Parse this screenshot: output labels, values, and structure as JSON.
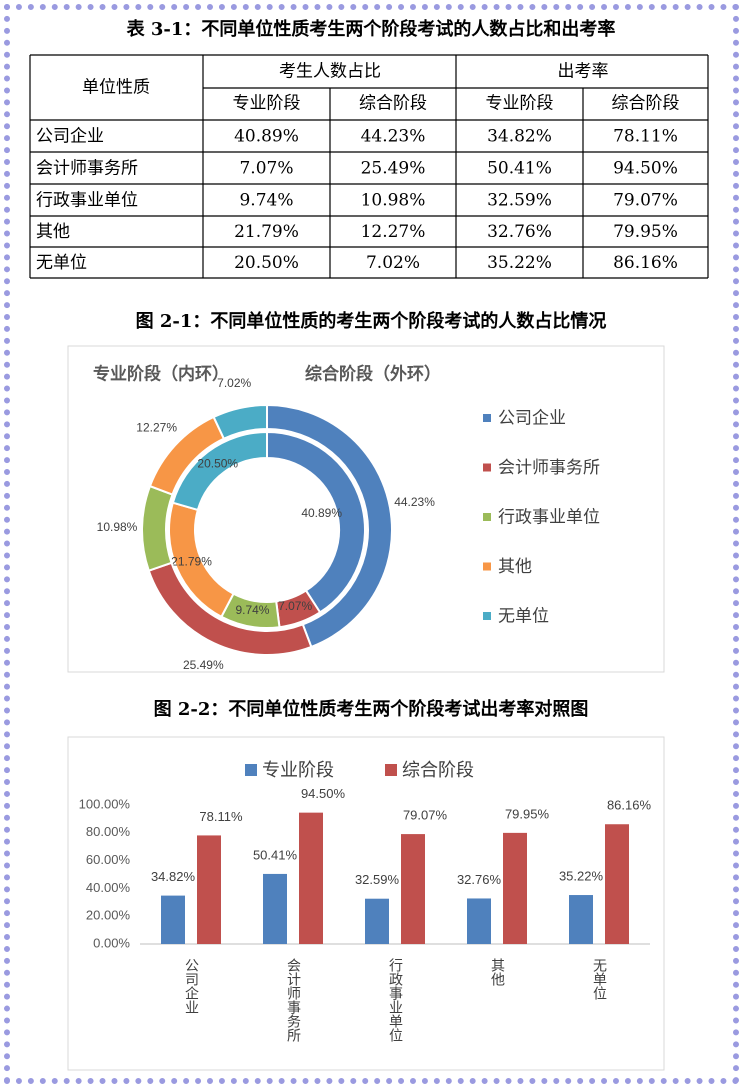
{
  "table": {
    "title": "表 3-1：不同单位性质考生两个阶段考试的人数占比和出考率",
    "header_row1": [
      "单位性质",
      "考生人数占比",
      "出考率"
    ],
    "header_row2": [
      "专业阶段",
      "综合阶段",
      "专业阶段",
      "综合阶段"
    ],
    "rows": [
      [
        "公司企业",
        "40.89%",
        "44.23%",
        "34.82%",
        "78.11%"
      ],
      [
        "会计师事务所",
        "7.07%",
        "25.49%",
        "50.41%",
        "94.50%"
      ],
      [
        "行政事业单位",
        "9.74%",
        "10.98%",
        "32.59%",
        "79.07%"
      ],
      [
        "其他",
        "21.79%",
        "12.27%",
        "32.76%",
        "79.95%"
      ],
      [
        "无单位",
        "20.50%",
        "7.02%",
        "35.22%",
        "86.16%"
      ]
    ]
  },
  "chart_data": [
    {
      "type": "donut",
      "title": "图 2-1：不同单位性质的考生两个阶段考试的人数占比情况",
      "categories": [
        "公司企业",
        "会计师事务所",
        "行政事业单位",
        "其他",
        "无单位"
      ],
      "colors": [
        "#4f81bd",
        "#c0504d",
        "#9bbb59",
        "#f79646",
        "#4bacc6"
      ],
      "series": [
        {
          "name": "专业阶段（内环）",
          "values": [
            40.89,
            7.07,
            9.74,
            21.79,
            20.5
          ],
          "value_labels": [
            "40.89%",
            "7.07%",
            "9.74%",
            "21.79%",
            "20.50%"
          ]
        },
        {
          "name": "综合阶段（外环）",
          "values": [
            44.23,
            25.49,
            10.98,
            12.27,
            7.02
          ],
          "value_labels": [
            "44.23%",
            "25.49%",
            "10.98%",
            "12.27%",
            "7.02%"
          ]
        }
      ],
      "legend": "right"
    },
    {
      "type": "bar",
      "title": "图 2-2：不同单位性质考生两个阶段考试出考率对照图",
      "categories": [
        "公司企业",
        "会计师事务所",
        "行政事业单位",
        "其他",
        "无单位"
      ],
      "series": [
        {
          "name": "专业阶段",
          "color": "#4f81bd",
          "values": [
            34.82,
            50.41,
            32.59,
            32.76,
            35.22
          ],
          "value_labels": [
            "34.82%",
            "50.41%",
            "32.59%",
            "32.76%",
            "35.22%"
          ]
        },
        {
          "name": "综合阶段",
          "color": "#c0504d",
          "values": [
            78.11,
            94.5,
            79.07,
            79.95,
            86.16
          ],
          "value_labels": [
            "78.11%",
            "94.50%",
            "79.07%",
            "79.95%",
            "86.16%"
          ]
        }
      ],
      "ylim": [
        0,
        100
      ],
      "yticks": [
        {
          "value": 0,
          "label": "0.00%"
        },
        {
          "value": 20,
          "label": "20.00%"
        },
        {
          "value": 40,
          "label": "40.00%"
        },
        {
          "value": 60,
          "label": "60.00%"
        },
        {
          "value": 80,
          "label": "80.00%"
        },
        {
          "value": 100,
          "label": "100.00%"
        }
      ],
      "grid": false,
      "legend": "top"
    }
  ]
}
